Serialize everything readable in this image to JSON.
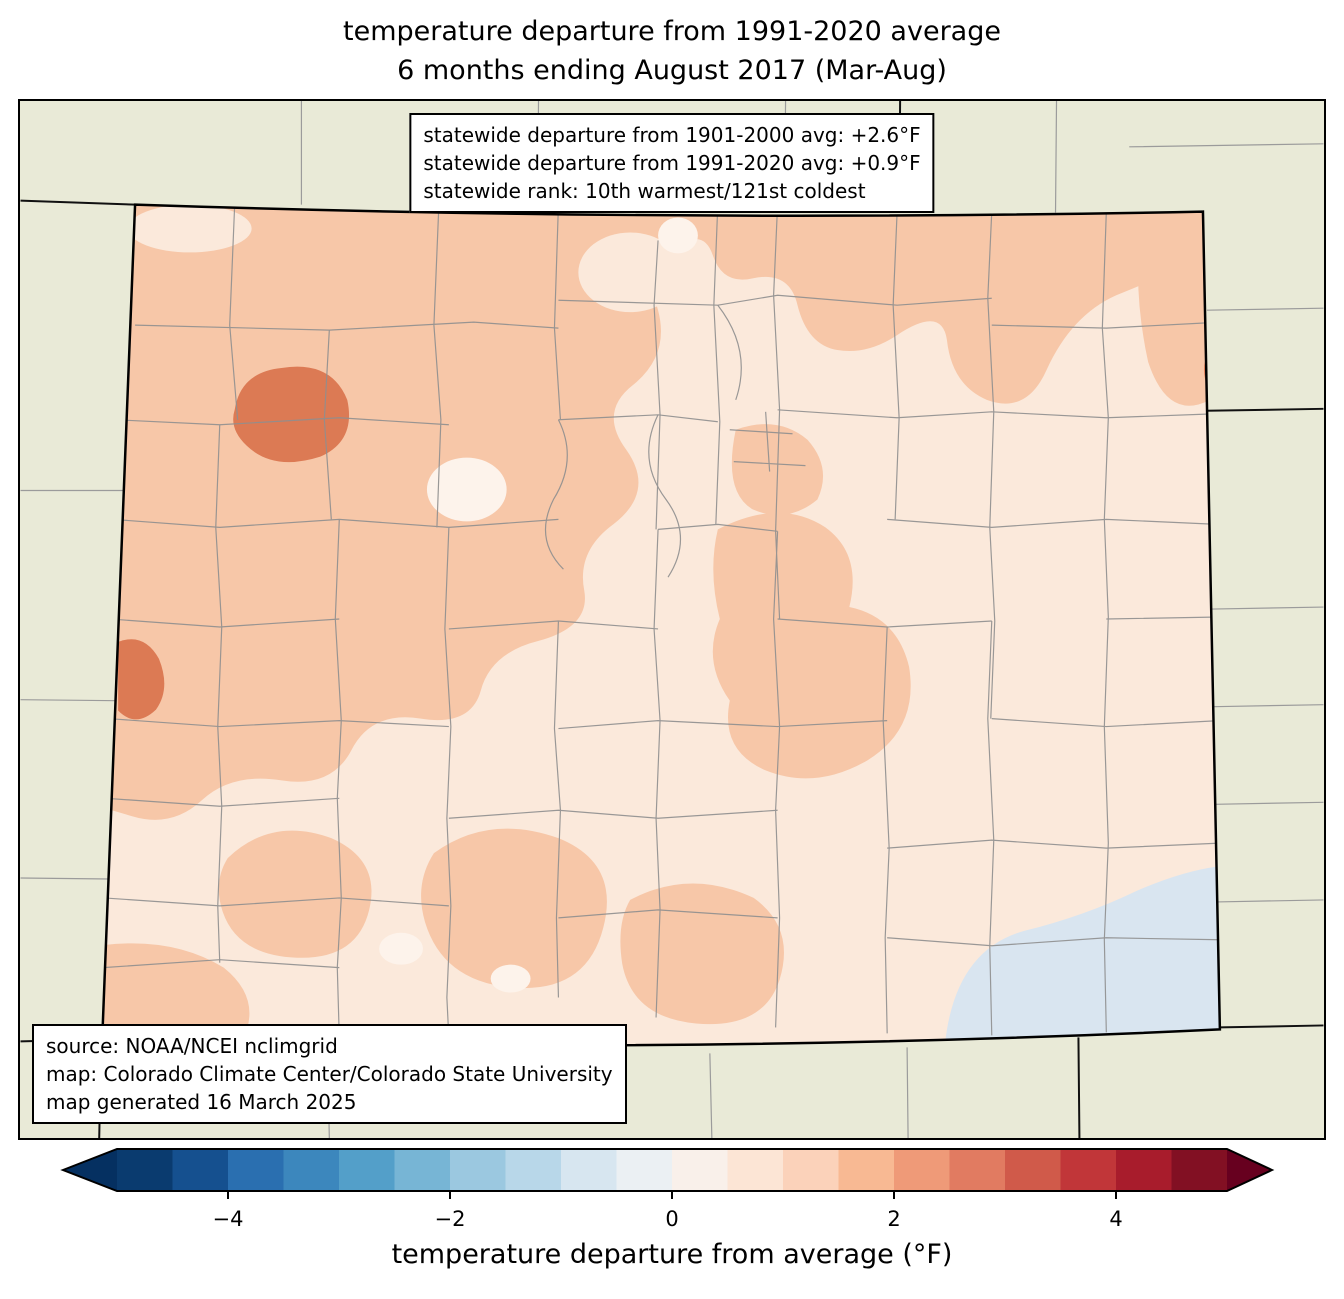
{
  "title": {
    "line1": "temperature departure from 1991-2020 average",
    "line2": "6 months ending August 2017 (Mar-Aug)"
  },
  "stats_box": {
    "line1": "statewide departure from 1901-2000 avg: +2.6°F",
    "line2": "statewide departure from 1991-2020 avg: +0.9°F",
    "line3": "statewide rank: 10th warmest/121st coldest"
  },
  "source_box": {
    "line1": "source: NOAA/NCEI nclimgrid",
    "line2": "map: Colorado Climate Center/Colorado State University",
    "line3": "map generated 16 March 2025"
  },
  "colorbar": {
    "label": "temperature departure from average (°F)",
    "tick_labels": [
      "−4",
      "−2",
      "0",
      "2",
      "4"
    ],
    "tick_values": [
      -4,
      -2,
      0,
      2,
      4
    ],
    "range": [
      -5,
      5
    ],
    "left_arrow_color": "#053061",
    "right_arrow_color": "#67001f",
    "segment_colors": [
      "#0a3b6f",
      "#15508f",
      "#2a6fb0",
      "#3c87bd",
      "#539fc9",
      "#77b5d5",
      "#9bc8e0",
      "#b8d7e9",
      "#d7e6f0",
      "#ebf0f3",
      "#f9f0ea",
      "#fce5d5",
      "#fbd2ba",
      "#f8b993",
      "#ef9a78",
      "#e17b61",
      "#d05a4a",
      "#c13639",
      "#a81c2c",
      "#821023"
    ]
  },
  "map": {
    "palette": {
      "outside": "#e9ead7",
      "base": "#fbe9db",
      "warm1": "#f7c7a8",
      "warm2": "#dc7a54",
      "warm2b": "#e2825d",
      "cool1": "#d9e5f0",
      "light": "#fdf3eb"
    }
  }
}
